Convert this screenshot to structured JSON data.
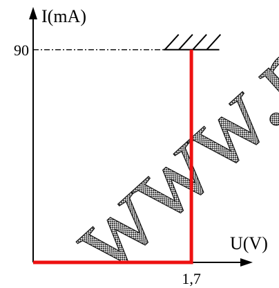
{
  "watermark": {
    "text": "www.pc"
  },
  "chart_data": {
    "type": "line",
    "xlabel": "U(V)",
    "ylabel": "I(mA)",
    "x_tick_labels": [
      "1,7"
    ],
    "x_ticks": [
      1.7
    ],
    "y_tick_labels": [
      "90"
    ],
    "y_ticks": [
      90
    ],
    "xlim": [
      0,
      2.56
    ],
    "ylim": [
      0,
      104
    ],
    "grid": false,
    "series": [
      {
        "x": [
          0,
          1.7,
          1.7
        ],
        "y": [
          0,
          0,
          90
        ],
        "color": "#ee1111"
      }
    ],
    "annotations": {
      "limit_line_y": 90,
      "hatched_limit_x": [
        1.4,
        2.0
      ]
    },
    "colors": {
      "axes": "#000000",
      "curve": "#ee1111"
    }
  }
}
